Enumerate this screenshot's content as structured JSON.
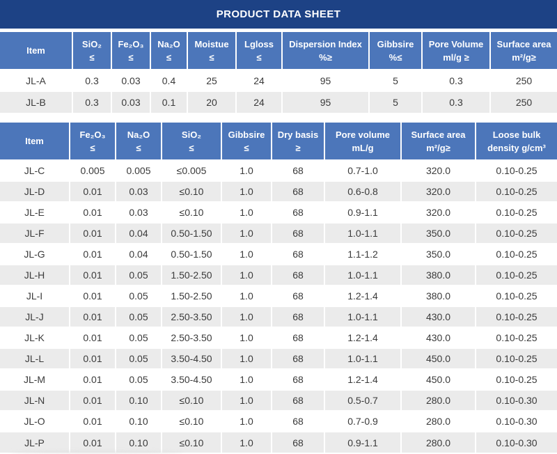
{
  "title": "PRODUCT DATA SHEET",
  "colors": {
    "title_bar": "#1d4285",
    "header": "#4c76ba",
    "row_alt": "#ebebeb",
    "row_base": "#ffffff",
    "text": "#3a3a3a"
  },
  "table1": {
    "columns": [
      {
        "id": "item",
        "line1": "Item",
        "line2": ""
      },
      {
        "id": "sio2",
        "line1": "SiO₂",
        "line2": "≤"
      },
      {
        "id": "fe2o3",
        "line1": "Fe₂O₃",
        "line2": "≤"
      },
      {
        "id": "na2o",
        "line1": "Na₂O",
        "line2": "≤"
      },
      {
        "id": "moistue",
        "line1": "Moistue",
        "line2": "≤"
      },
      {
        "id": "lgloss",
        "line1": "Lgloss",
        "line2": "≤"
      },
      {
        "id": "dispersion-index",
        "line1": "Dispersion Index",
        "line2": "%≥"
      },
      {
        "id": "gibbsire",
        "line1": "Gibbsire",
        "line2": "%≤"
      },
      {
        "id": "pore-volume",
        "line1": "Pore Volume",
        "line2": "ml/g ≥"
      },
      {
        "id": "surface-area",
        "line1": "Surface area",
        "line2": "m²/g≥"
      }
    ],
    "rows": [
      {
        "item": "JL-A",
        "values": [
          "0.3",
          "0.03",
          "0.4",
          "25",
          "24",
          "95",
          "5",
          "0.3",
          "250"
        ]
      },
      {
        "item": "JL-B",
        "values": [
          "0.3",
          "0.03",
          "0.1",
          "20",
          "24",
          "95",
          "5",
          "0.3",
          "250"
        ]
      }
    ]
  },
  "table2": {
    "columns": [
      {
        "id": "item",
        "line1": "Item",
        "line2": ""
      },
      {
        "id": "fe2o3",
        "line1": "Fe₂O₃",
        "line2": "≤"
      },
      {
        "id": "na2o",
        "line1": "Na₂O",
        "line2": "≤"
      },
      {
        "id": "sio2",
        "line1": "SiO₂",
        "line2": "≤"
      },
      {
        "id": "gibbsire",
        "line1": "Gibbsire",
        "line2": "≤"
      },
      {
        "id": "dry-basis",
        "line1": "Dry basis",
        "line2": "≥"
      },
      {
        "id": "pore-volume",
        "line1": "Pore volume",
        "line2": "mL/g"
      },
      {
        "id": "surface-area",
        "line1": "Surface area",
        "line2": "m²/g≥"
      },
      {
        "id": "loose-bulk-density",
        "line1": "Loose bulk",
        "line2": "density g/cm³"
      }
    ],
    "rows": [
      {
        "item": "JL-C",
        "values": [
          "0.005",
          "0.005",
          "≤0.005",
          "1.0",
          "68",
          "0.7-1.0",
          "320.0",
          "0.10-0.25"
        ]
      },
      {
        "item": "JL-D",
        "values": [
          "0.01",
          "0.03",
          "≤0.10",
          "1.0",
          "68",
          "0.6-0.8",
          "320.0",
          "0.10-0.25"
        ]
      },
      {
        "item": "JL-E",
        "values": [
          "0.01",
          "0.03",
          "≤0.10",
          "1.0",
          "68",
          "0.9-1.1",
          "320.0",
          "0.10-0.25"
        ]
      },
      {
        "item": "JL-F",
        "values": [
          "0.01",
          "0.04",
          "0.50-1.50",
          "1.0",
          "68",
          "1.0-1.1",
          "350.0",
          "0.10-0.25"
        ]
      },
      {
        "item": "JL-G",
        "values": [
          "0.01",
          "0.04",
          "0.50-1.50",
          "1.0",
          "68",
          "1.1-1.2",
          "350.0",
          "0.10-0.25"
        ]
      },
      {
        "item": "JL-H",
        "values": [
          "0.01",
          "0.05",
          "1.50-2.50",
          "1.0",
          "68",
          "1.0-1.1",
          "380.0",
          "0.10-0.25"
        ]
      },
      {
        "item": "JL-I",
        "values": [
          "0.01",
          "0.05",
          "1.50-2.50",
          "1.0",
          "68",
          "1.2-1.4",
          "380.0",
          "0.10-0.25"
        ]
      },
      {
        "item": "JL-J",
        "values": [
          "0.01",
          "0.05",
          "2.50-3.50",
          "1.0",
          "68",
          "1.0-1.1",
          "430.0",
          "0.10-0.25"
        ]
      },
      {
        "item": "JL-K",
        "values": [
          "0.01",
          "0.05",
          "2.50-3.50",
          "1.0",
          "68",
          "1.2-1.4",
          "430.0",
          "0.10-0.25"
        ]
      },
      {
        "item": "JL-L",
        "values": [
          "0.01",
          "0.05",
          "3.50-4.50",
          "1.0",
          "68",
          "1.0-1.1",
          "450.0",
          "0.10-0.25"
        ]
      },
      {
        "item": "JL-M",
        "values": [
          "0.01",
          "0.05",
          "3.50-4.50",
          "1.0",
          "68",
          "1.2-1.4",
          "450.0",
          "0.10-0.25"
        ]
      },
      {
        "item": "JL-N",
        "values": [
          "0.01",
          "0.10",
          "≤0.10",
          "1.0",
          "68",
          "0.5-0.7",
          "280.0",
          "0.10-0.30"
        ]
      },
      {
        "item": "JL-O",
        "values": [
          "0.01",
          "0.10",
          "≤0.10",
          "1.0",
          "68",
          "0.7-0.9",
          "280.0",
          "0.10-0.30"
        ]
      },
      {
        "item": "JL-P",
        "values": [
          "0.01",
          "0.10",
          "≤0.10",
          "1.0",
          "68",
          "0.9-1.1",
          "280.0",
          "0.10-0.30"
        ]
      }
    ]
  }
}
